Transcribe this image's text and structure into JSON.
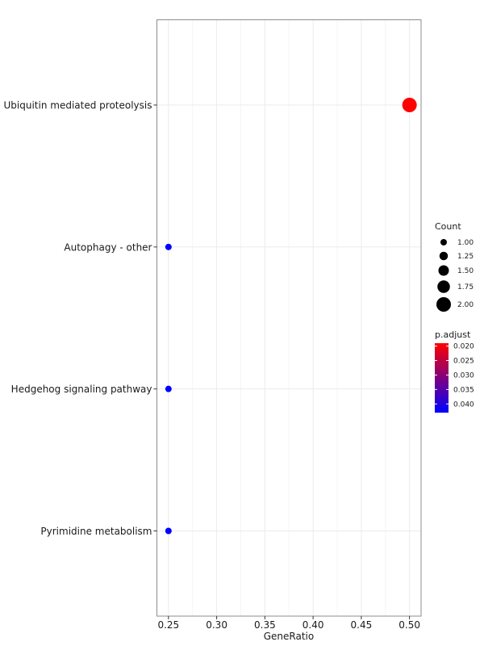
{
  "chart_data": {
    "type": "scatter",
    "title": "",
    "xlabel": "GeneRatio",
    "ylabel": "",
    "xlim": [
      0.238,
      0.512
    ],
    "x_ticks": [
      0.25,
      0.3,
      0.35,
      0.4,
      0.45,
      0.5
    ],
    "x_tick_labels": [
      "0.25",
      "0.30",
      "0.35",
      "0.40",
      "0.45",
      "0.50"
    ],
    "grid": true,
    "categories": [
      "Ubiquitin mediated proteolysis",
      "Autophagy - other",
      "Hedgehog signaling pathway",
      "Pyrimidine metabolism"
    ],
    "points": [
      {
        "term": "Ubiquitin mediated proteolysis",
        "gene_ratio": 0.5,
        "count": 2,
        "p_adjust": 0.019
      },
      {
        "term": "Autophagy - other",
        "gene_ratio": 0.25,
        "count": 1,
        "p_adjust": 0.043
      },
      {
        "term": "Hedgehog signaling pathway",
        "gene_ratio": 0.25,
        "count": 1,
        "p_adjust": 0.043
      },
      {
        "term": "Pyrimidine metabolism",
        "gene_ratio": 0.25,
        "count": 1,
        "p_adjust": 0.043
      }
    ],
    "size_legend": {
      "title": "Count",
      "values": [
        1.0,
        1.25,
        1.5,
        1.75,
        2.0
      ],
      "labels": [
        "1.00",
        "1.25",
        "1.50",
        "1.75",
        "2.00"
      ]
    },
    "color_legend": {
      "title": "p.adjust",
      "min": 0.019,
      "max": 0.043,
      "ticks": [
        0.02,
        0.025,
        0.03,
        0.035,
        0.04
      ],
      "tick_labels": [
        "0.020",
        "0.025",
        "0.030",
        "0.035",
        "0.040"
      ],
      "low_color": "#ff0000",
      "high_color": "#0000ff"
    },
    "legend_position": "right",
    "colors": {
      "panel_border": "#8c8c8c",
      "grid_major": "#ebebeb",
      "grid_minor": "#f5f5f5",
      "point_outline": "none"
    }
  }
}
